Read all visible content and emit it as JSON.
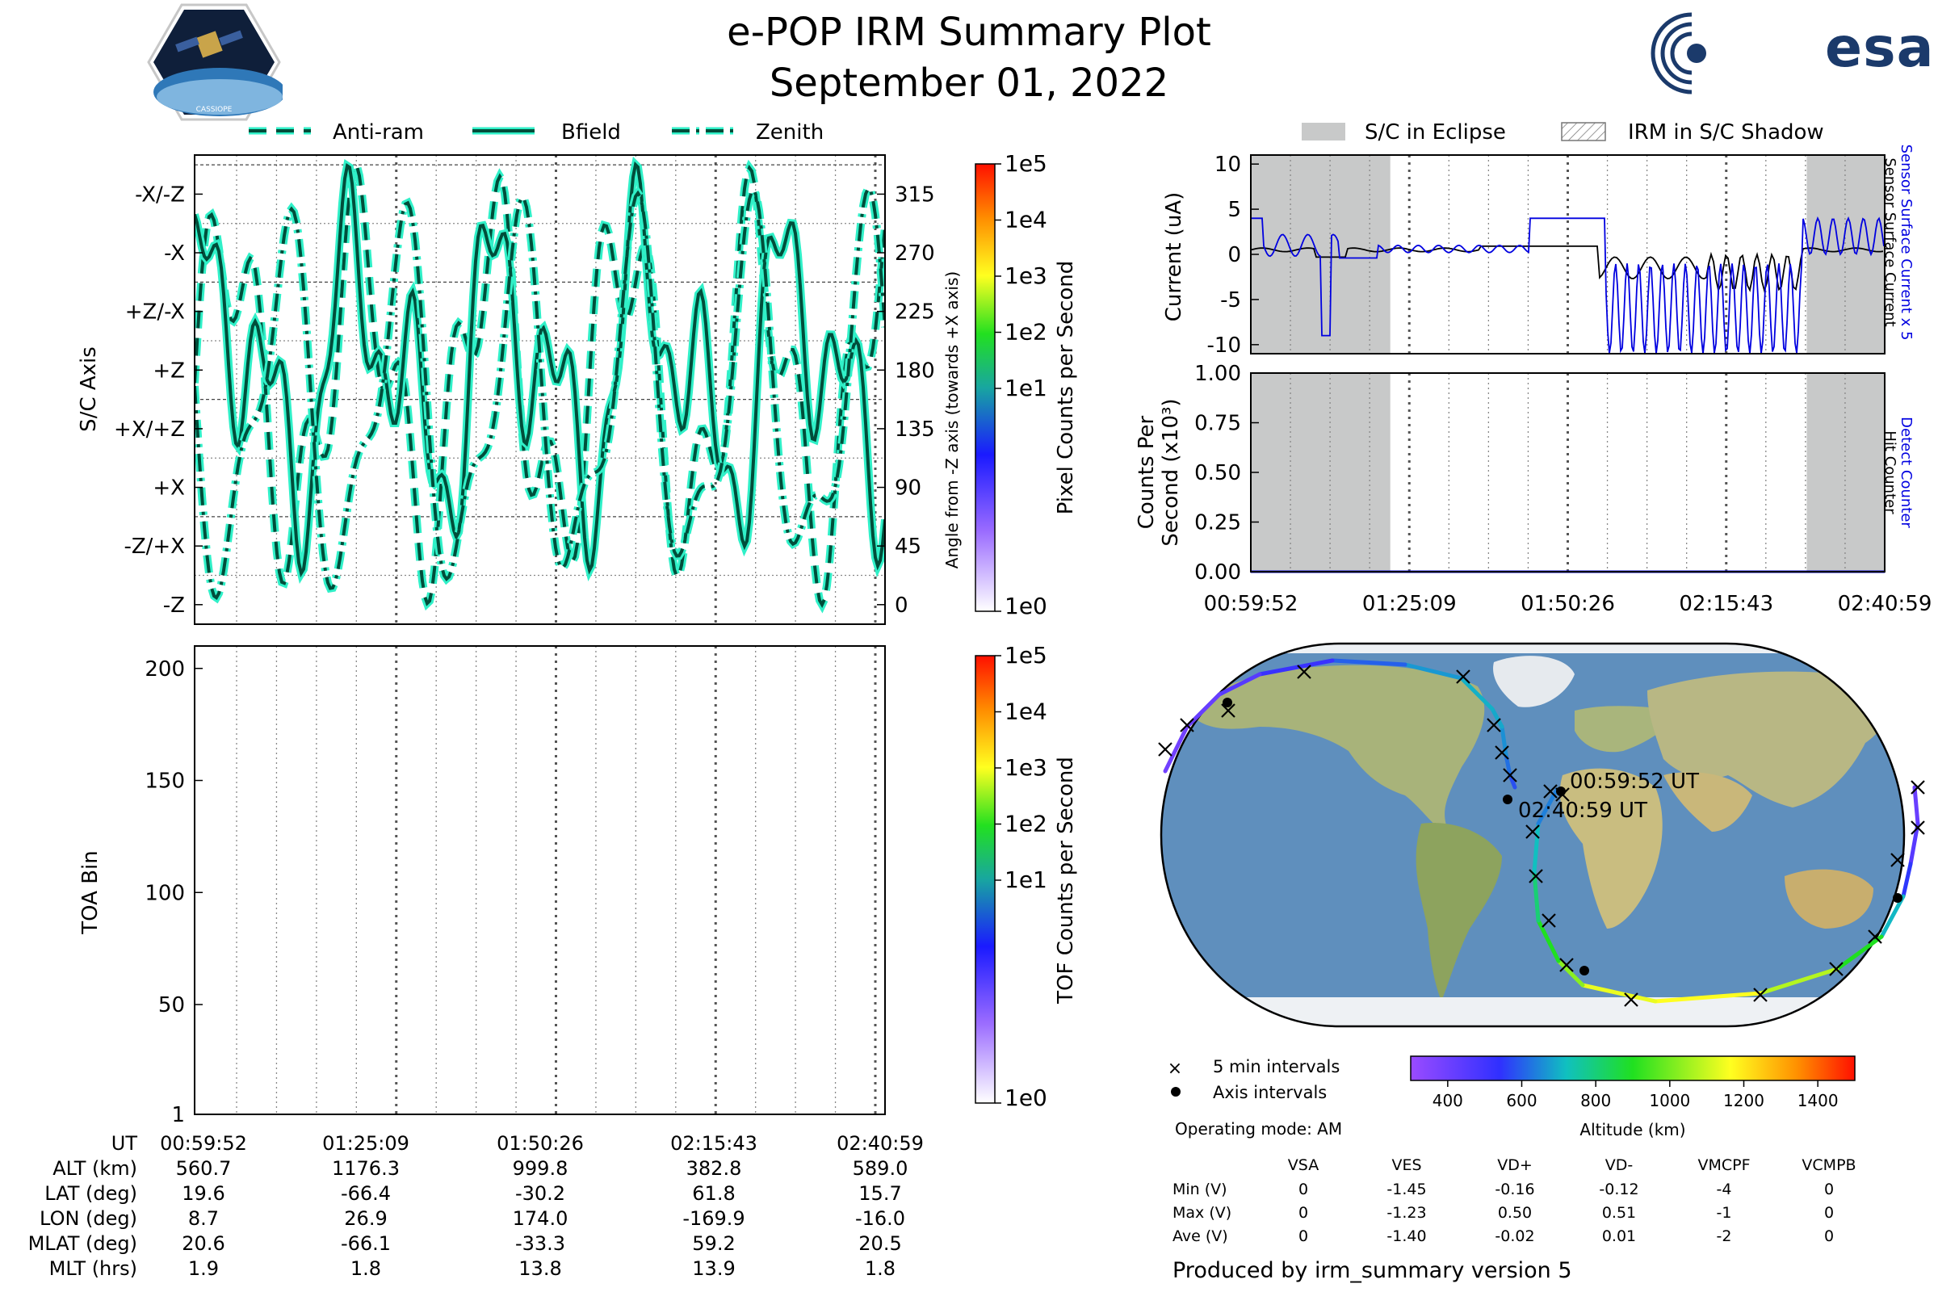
{
  "header": {
    "title": "e-POP IRM Summary Plot",
    "date": "September 01, 2022",
    "mission_logo_text": "CASSIOPE",
    "agency_logo_text": "esa"
  },
  "chart_data": [
    {
      "id": "sc-axis",
      "type": "line",
      "legend": [
        "Anti-ram",
        "Bfield",
        "Zenith"
      ],
      "legend_placement": "top",
      "ylabel": "S/C Axis",
      "right_ylabel": "Angle from -Z axis (towards +X axis)",
      "y_axis_labels": [
        "-Z",
        "-Z/+X",
        "+X",
        "+X/+Z",
        "+Z",
        "+Z/-X",
        "-X",
        "-X/-Z"
      ],
      "right_ticks": [
        "0",
        "45",
        "90",
        "135",
        "180",
        "225",
        "270",
        "315"
      ],
      "ylim": [
        -15,
        345
      ],
      "colorbar_label": "Pixel Counts per Second",
      "colorbar_ticks": [
        "1e0",
        "1e1",
        "1e2",
        "1e3",
        "1e4",
        "1e5"
      ],
      "x_ticks": [
        "00:59:52",
        "01:25:09",
        "01:50:26",
        "02:15:43",
        "02:40:59"
      ],
      "line_color": "#004d3a",
      "glow_color": "#30f0c8"
    },
    {
      "id": "toa",
      "type": "heatmap",
      "ylabel": "TOA Bin",
      "yticks": [
        "1",
        "50",
        "100",
        "150",
        "200"
      ],
      "ylim": [
        1,
        210
      ],
      "colorbar_label": "TOF Counts per Second",
      "colorbar_ticks": [
        "1e0",
        "1e1",
        "1e2",
        "1e3",
        "1e4",
        "1e5"
      ]
    },
    {
      "id": "current",
      "type": "line",
      "legend": [
        "S/C in Eclipse",
        "IRM in S/C Shadow"
      ],
      "ylabel": "Current (uA)",
      "yticks": [
        "-10",
        "-5",
        "0",
        "5",
        "10"
      ],
      "ylim": [
        -11,
        11
      ],
      "right_label_top": "Sensor Surface Current x 5",
      "right_label_bottom": "Sensor Surface Current",
      "eclipse_fractions": [
        [
          0,
          0.22
        ],
        [
          0.877,
          1
        ]
      ]
    },
    {
      "id": "counts",
      "type": "line",
      "ylabel_line1": "Counts Per",
      "ylabel_line2": "Second (x10³)",
      "yticks": [
        "0.00",
        "0.25",
        "0.50",
        "0.75",
        "1.00"
      ],
      "ylim": [
        0,
        1
      ],
      "right_label_top": "Detect Counter",
      "right_label_bottom": "Hit Counter",
      "x_ticks": [
        "00:59:52",
        "01:25:09",
        "01:50:26",
        "02:15:43",
        "02:40:59"
      ],
      "values": [
        0,
        0
      ]
    },
    {
      "id": "orbit-map",
      "type": "scatter",
      "start_label": "00:59:52 UT",
      "end_label": "02:40:59 UT",
      "legend": [
        "5 min intervals",
        "Axis intervals"
      ],
      "operating_mode": "Operating mode: AM",
      "colorbar_label": "Altitude (km)",
      "colorbar_ticks": [
        "400",
        "600",
        "800",
        "1000",
        "1200",
        "1400"
      ],
      "colorbar_range": [
        300,
        1500
      ]
    }
  ],
  "ephemeris": {
    "labels": [
      "UT",
      "ALT (km)",
      "LAT (deg)",
      "LON (deg)",
      "MLAT (deg)",
      "MLT (hrs)"
    ],
    "columns": [
      [
        "00:59:52",
        "560.7",
        "19.6",
        "8.7",
        "20.6",
        "1.9"
      ],
      [
        "01:25:09",
        "1176.3",
        "-66.4",
        "26.9",
        "-66.1",
        "1.8"
      ],
      [
        "01:50:26",
        "999.8",
        "-30.2",
        "174.0",
        "-33.3",
        "13.8"
      ],
      [
        "02:15:43",
        "382.8",
        "61.8",
        "-169.9",
        "59.2",
        "13.9"
      ],
      [
        "02:40:59",
        "589.0",
        "15.7",
        "-16.0",
        "20.5",
        "1.8"
      ]
    ]
  },
  "voltages": {
    "headers": [
      "VSA",
      "VES",
      "VD+",
      "VD-",
      "VMCPF",
      "VCMPB"
    ],
    "rows": [
      {
        "label": "Min (V)",
        "values": [
          "0",
          "-1.45",
          "-0.16",
          "-0.12",
          "-4",
          "0"
        ]
      },
      {
        "label": "Max (V)",
        "values": [
          "0",
          "-1.23",
          "0.50",
          "0.51",
          "-1",
          "0"
        ]
      },
      {
        "label": "Ave (V)",
        "values": [
          "0",
          "-1.40",
          "-0.02",
          "0.01",
          "-2",
          "0"
        ]
      }
    ]
  },
  "footer": "Produced by irm_summary version 5"
}
